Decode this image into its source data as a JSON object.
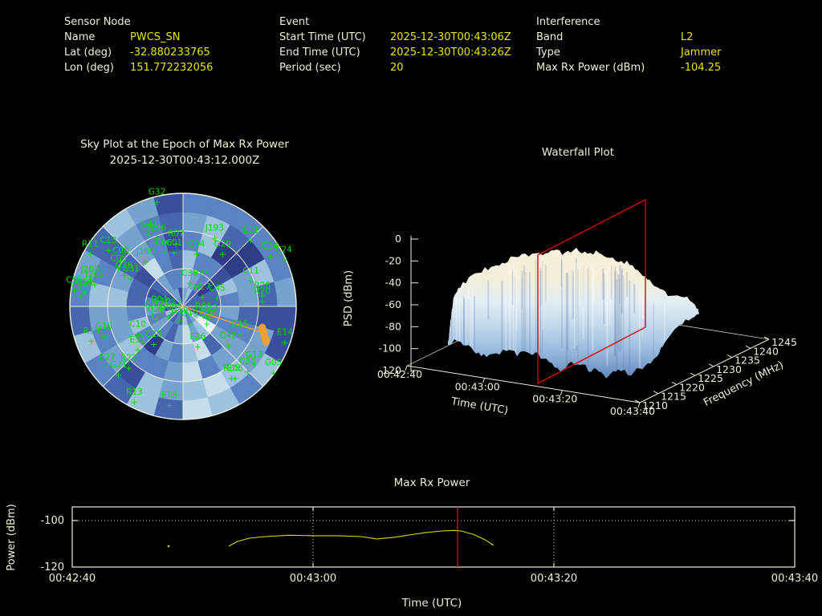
{
  "header": {
    "sensor": {
      "title": "Sensor Node",
      "rows": [
        {
          "label": "Name",
          "value": "PWCS_SN"
        },
        {
          "label": "Lat (deg)",
          "value": "-32.880233765"
        },
        {
          "label": "Lon (deg)",
          "value": "151.772232056"
        }
      ]
    },
    "event": {
      "title": "Event",
      "rows": [
        {
          "label": "Start Time (UTC)",
          "value": "2025-12-30T00:43:06Z"
        },
        {
          "label": "End Time (UTC)",
          "value": "2025-12-30T00:43:26Z"
        },
        {
          "label": "Period (sec)",
          "value": "20"
        }
      ]
    },
    "interference": {
      "title": "Interference",
      "rows": [
        {
          "label": "Band",
          "value": "L2"
        },
        {
          "label": "Type",
          "value": "Jammer"
        },
        {
          "label": "Max Rx Power (dBm)",
          "value": "-104.25"
        }
      ]
    }
  },
  "colors": {
    "background": "#000000",
    "text_cream": "#f1eed3",
    "value_yellow": "#e8e600",
    "satellite_green": "#00da00",
    "interference_orange": "#f0a030",
    "slice_red": "#e00000",
    "curve_yellow": "#d9d900",
    "grid_cream": "#f2f0da"
  },
  "chart_data": [
    {
      "type": "heatmap",
      "name": "skyplot",
      "title": "Sky Plot at the Epoch of Max Rx Power",
      "subtitle": "2025-12-30T00:43:12.000Z",
      "projection": "polar-sky",
      "elevation_rings_deg": [
        0,
        30,
        60
      ],
      "azimuth_spokes_deg": [
        0,
        45,
        90,
        135,
        180,
        225,
        270,
        315
      ],
      "heat_palette": [
        "#2e3d85",
        "#3a4f9c",
        "#4666ae",
        "#5b82c1",
        "#77a2d0",
        "#9cc2de",
        "#c6deec",
        "#eaf4f8"
      ],
      "heat_seed": 42,
      "marker_glyph": "+",
      "interference_pointer": {
        "line_end": [
          0.7,
          0.23
        ],
        "blob_from": [
          0.7,
          0.185
        ],
        "blob_to": [
          0.735,
          0.315
        ]
      },
      "satellites": [
        [
          "G32",
          -0.23,
          -0.99
        ],
        [
          "G41",
          -0.3,
          -0.7
        ],
        [
          "J196",
          -0.23,
          -0.67
        ],
        [
          "R07",
          -0.06,
          -0.62
        ],
        [
          "J193",
          0.28,
          -0.67
        ],
        [
          "E21",
          0.6,
          -0.65
        ],
        [
          "C34",
          0.77,
          -0.51
        ],
        [
          "C24",
          0.89,
          -0.48
        ],
        [
          "R11",
          -0.82,
          -0.53
        ],
        [
          "C13",
          -0.66,
          -0.56
        ],
        [
          "C08",
          -0.55,
          -0.47
        ],
        [
          "C05",
          -0.57,
          -0.4
        ],
        [
          "J199",
          -0.33,
          -0.46
        ],
        [
          "C06",
          -0.17,
          -0.54
        ],
        [
          "C01",
          -0.08,
          -0.54
        ],
        [
          "C04",
          0.12,
          -0.53
        ],
        [
          "G29",
          0.35,
          -0.53
        ],
        [
          "C11",
          0.6,
          -0.29
        ],
        [
          "J209",
          -0.82,
          -0.3
        ],
        [
          "J206",
          -0.78,
          -0.26
        ],
        [
          "C59",
          -0.96,
          -0.21
        ],
        [
          "C58",
          -0.87,
          -0.19
        ],
        [
          "C16",
          -0.91,
          -0.16
        ],
        [
          "G36",
          -0.52,
          -0.34
        ],
        [
          "G31",
          -0.46,
          -0.31
        ],
        [
          "C33",
          0.06,
          -0.27
        ],
        [
          "E23",
          0.16,
          -0.27
        ],
        [
          "R27",
          0.17,
          -0.15
        ],
        [
          "C45",
          0.3,
          -0.14
        ],
        [
          "R28",
          0.7,
          -0.16
        ],
        [
          "R20",
          0.7,
          -0.11
        ],
        [
          "C49",
          0.06,
          0.09
        ],
        [
          "G19",
          -0.03,
          0.06
        ],
        [
          "E10",
          -0.18,
          -0.02
        ],
        [
          "C20",
          -0.27,
          0.01
        ],
        [
          "G09",
          -0.13,
          0.03
        ],
        [
          "R04",
          -0.21,
          -0.04
        ],
        [
          "C23",
          -0.09,
          -0.01
        ],
        [
          "G26",
          -0.24,
          0.05
        ],
        [
          "R06",
          0.18,
          0.02
        ],
        [
          "G12",
          0.23,
          0.04
        ],
        [
          "E24",
          0.21,
          0.09
        ],
        [
          "E26",
          0.13,
          0.29
        ],
        [
          "G15",
          0.5,
          0.18
        ],
        [
          "E14",
          0.9,
          0.25
        ],
        [
          "C42",
          0.4,
          0.28
        ],
        [
          "C10",
          -0.4,
          0.18
        ],
        [
          "G16",
          -0.7,
          0.2
        ],
        [
          "R15",
          -0.81,
          0.24
        ],
        [
          "C28",
          -0.26,
          0.27
        ],
        [
          "E31",
          -0.4,
          0.32
        ],
        [
          "C27",
          -0.67,
          0.47
        ],
        [
          "R22",
          -0.48,
          0.48
        ],
        [
          "G21",
          -0.57,
          0.54
        ],
        [
          "R13",
          -0.43,
          0.78
        ],
        [
          "E18",
          -0.12,
          0.81
        ],
        [
          "G13",
          0.63,
          0.45
        ],
        [
          "C30",
          0.57,
          0.51
        ],
        [
          "G05",
          0.8,
          0.52
        ],
        [
          "R05",
          0.43,
          0.57
        ],
        [
          "E06",
          0.46,
          0.57
        ]
      ]
    },
    {
      "type": "heatmap",
      "name": "waterfall",
      "title": "Waterfall Plot",
      "style": "3d-surface",
      "xlabel": "Time (UTC)",
      "ylabel": "Frequency (MHz)",
      "zlabel": "PSD (dBm)",
      "x_ticks": [
        "00:42:40",
        "00:43:00",
        "00:43:20",
        "00:43:40"
      ],
      "y_ticks": [
        "1210",
        "1215",
        "1220",
        "1225",
        "1230",
        "1235",
        "1240",
        "1245"
      ],
      "z_ticks": [
        "0",
        "-20",
        "-40",
        "-60",
        "-80",
        "-100",
        "-120"
      ],
      "zlim": [
        -120,
        0
      ],
      "freq_range_mhz": [
        1210,
        1245
      ],
      "time_range": [
        "00:42:40",
        "00:43:40"
      ],
      "plateau_psd_dbm": -25,
      "slice_time": "00:43:12",
      "surface_seed": 7,
      "surface_palette_top_to_bottom": [
        "#f8f1dc",
        "#eef3f4",
        "#c9ddee",
        "#a6c4e2",
        "#7fa3d0",
        "#5f85bb"
      ]
    },
    {
      "type": "line",
      "name": "max-rx-power",
      "title": "Max Rx Power",
      "xlabel": "Time (UTC)",
      "ylabel": "Power (dBm)",
      "x_ticks": [
        "00:42:40",
        "00:43:00",
        "00:43:20",
        "00:43:40"
      ],
      "y_ticks": [
        "-100",
        "-120"
      ],
      "ylim": [
        -120,
        -94
      ],
      "x_seconds_range": [
        0,
        60
      ],
      "gridline_y": -100,
      "epoch_marker_seconds": 32,
      "isolated_point": [
        8,
        -111
      ],
      "points": [
        [
          13,
          -111.0
        ],
        [
          13.7,
          -109.0
        ],
        [
          14.7,
          -107.6
        ],
        [
          16,
          -106.9
        ],
        [
          18,
          -106.3
        ],
        [
          20,
          -106.5
        ],
        [
          22,
          -106.5
        ],
        [
          24,
          -106.9
        ],
        [
          25.3,
          -107.9
        ],
        [
          26.7,
          -107.2
        ],
        [
          28,
          -106.2
        ],
        [
          29.3,
          -105.2
        ],
        [
          30.7,
          -104.5
        ],
        [
          31.7,
          -104.25
        ],
        [
          32.3,
          -104.5
        ],
        [
          33.3,
          -105.9
        ],
        [
          34.3,
          -108.3
        ],
        [
          35,
          -110.7
        ]
      ]
    }
  ]
}
